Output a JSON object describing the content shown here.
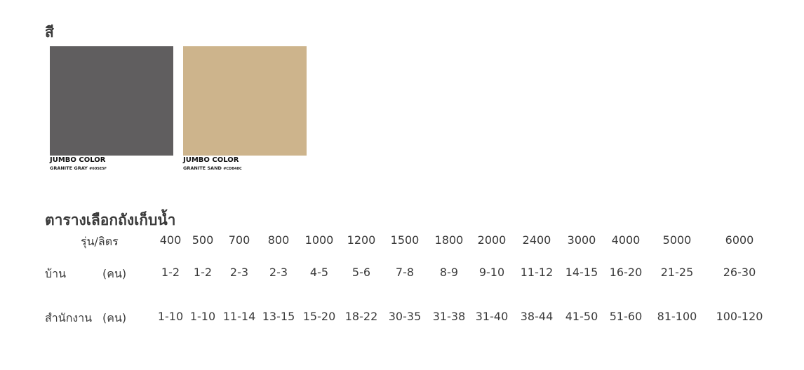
{
  "colors_heading": "สี",
  "swatches": [
    {
      "brand": "JUMBO COLOR",
      "name": "GRANITE GRAY",
      "hex_label": "#605E5F",
      "color": "#605e5f"
    },
    {
      "brand": "JUMBO COLOR",
      "name": "GRANITE SAND",
      "hex_label": "#CDB48C",
      "color": "#cdb48c"
    }
  ],
  "table": {
    "title": "ตารางเลือกถังเก็บน้ำ",
    "header_label": "รุ่น/ลิตร",
    "models": [
      "400",
      "500",
      "700",
      "800",
      "1000",
      "1200",
      "1500",
      "1800",
      "2000",
      "2400",
      "3000",
      "4000",
      "5000",
      "6000"
    ],
    "rows": [
      {
        "label": "บ้าน",
        "unit": "(คน)",
        "values": [
          "1-2",
          "1-2",
          "2-3",
          "2-3",
          "4-5",
          "5-6",
          "7-8",
          "8-9",
          "9-10",
          "11-12",
          "14-15",
          "16-20",
          "21-25",
          "26-30"
        ]
      },
      {
        "label": "สำนักงาน",
        "unit": "(คน)",
        "values": [
          "1-10",
          "1-10",
          "11-14",
          "13-15",
          "15-20",
          "18-22",
          "30-35",
          "31-38",
          "31-40",
          "38-44",
          "41-50",
          "51-60",
          "81-100",
          "100-120"
        ]
      }
    ]
  }
}
